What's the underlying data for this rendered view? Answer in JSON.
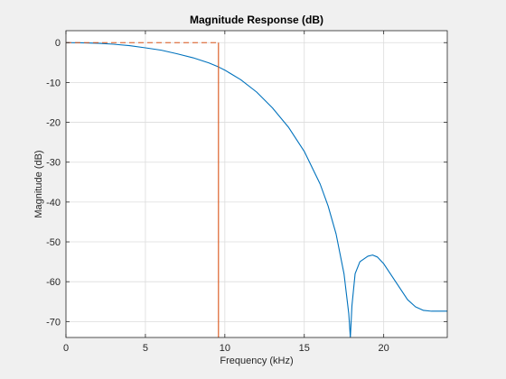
{
  "chart_data": {
    "type": "line",
    "title": "Magnitude Response (dB)",
    "xlabel": "Frequency (kHz)",
    "ylabel": "Magnitude (dB)",
    "xlim": [
      0,
      24
    ],
    "ylim": [
      -74,
      3
    ],
    "xticks": [
      0,
      5,
      10,
      15,
      20
    ],
    "yticks": [
      0,
      -10,
      -20,
      -30,
      -40,
      -50,
      -60,
      -70
    ],
    "grid": true,
    "series": [
      {
        "role": "response",
        "color": "#0072bd",
        "style": "solid",
        "x": [
          0,
          1,
          2,
          3,
          4,
          5,
          6,
          7,
          8,
          9,
          9.6,
          10,
          11,
          12,
          13,
          14,
          15,
          16,
          16.5,
          17,
          17.5,
          17.8,
          17.9,
          18.0,
          18.2,
          18.5,
          19,
          19.3,
          19.6,
          20,
          20.5,
          21,
          21.5,
          22,
          22.5,
          23,
          24
        ],
        "y": [
          0,
          -0.05,
          -0.15,
          -0.4,
          -0.75,
          -1.3,
          -1.9,
          -2.8,
          -3.8,
          -5.1,
          -6.1,
          -6.9,
          -9.3,
          -12.4,
          -16.4,
          -21.2,
          -27.3,
          -35.5,
          -41,
          -48,
          -58,
          -68,
          -74,
          -66,
          -58,
          -55,
          -53.6,
          -53.3,
          -53.8,
          -55.5,
          -58.5,
          -61.5,
          -64.5,
          -66.3,
          -67.2,
          -67.4,
          -67.4
        ]
      },
      {
        "role": "mask",
        "color": "#d95319",
        "style": "dashed",
        "x": [
          0,
          9.6
        ],
        "y": [
          0,
          0
        ]
      },
      {
        "role": "mask",
        "color": "#d95319",
        "style": "solid",
        "x": [
          9.6,
          9.6
        ],
        "y": [
          0,
          -74
        ]
      }
    ]
  }
}
